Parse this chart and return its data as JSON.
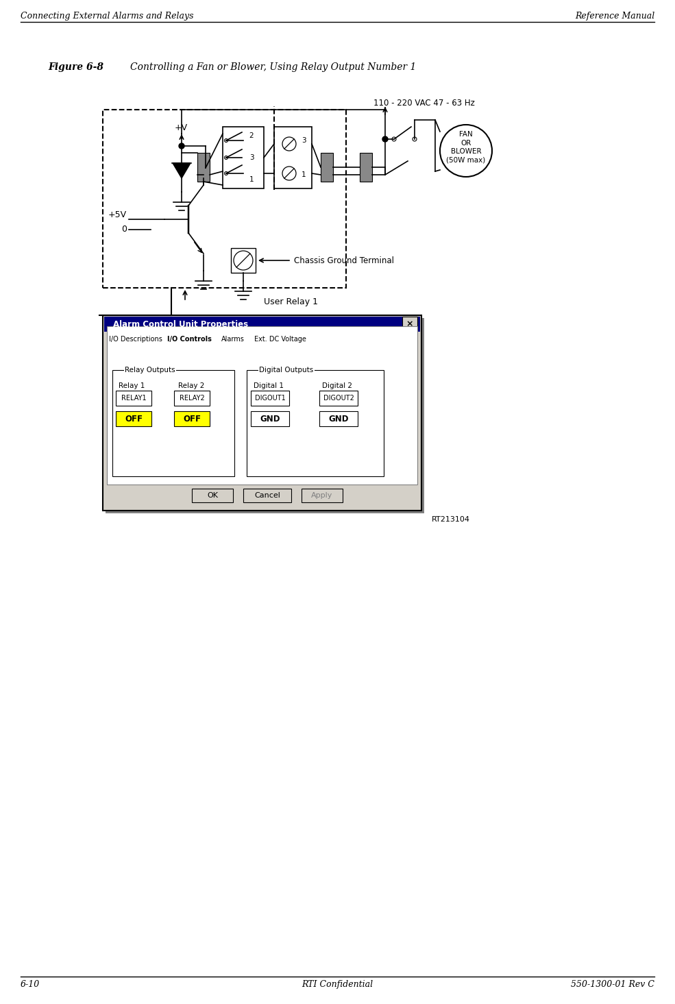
{
  "page_width": 9.85,
  "page_height": 14.65,
  "bg_color": "#ffffff",
  "header_left": "Connecting External Alarms and Relays",
  "header_right": "Reference Manual",
  "footer_left": "6-10",
  "footer_center": "RTI Confidential",
  "footer_right": "550-1300-01 Rev C",
  "figure_title": "Figure 6-8",
  "figure_caption": "Controlling a Fan or Blower, Using Relay Output Number 1",
  "circuit_label_dashed": "User Relay 1",
  "chassis_ground_label": "Chassis Ground Terminal",
  "voltage_label": "110 - 220 VAC 47 - 63 Hz",
  "fan_label": "FAN\nOR\nBLOWER\n(50W max)",
  "plus_v_label": "+V",
  "plus_5v_label": "+5V",
  "zero_label": "0",
  "ref_label": "RT213104",
  "dialog_title": "Alarm Control Unit Properties",
  "tab_labels": [
    "I/O Descriptions",
    "I/O Controls",
    "Alarms",
    "Ext. DC Voltage"
  ],
  "active_tab": "I/O Controls",
  "relay_outputs_label": "Relay Outputs",
  "digital_outputs_label": "Digital Outputs",
  "relay1_label": "Relay 1",
  "relay2_label": "Relay 2",
  "digital1_label": "Digital 1",
  "digital2_label": "Digital 2",
  "relay1_btn": "RELAY1",
  "relay2_btn": "RELAY2",
  "digout1_btn": "DIGOUT1",
  "digout2_btn": "DIGOUT2",
  "off1_btn": "OFF",
  "off2_btn": "OFF",
  "gnd1_btn": "GND",
  "gnd2_btn": "GND",
  "ok_btn": "OK",
  "cancel_btn": "Cancel",
  "apply_btn": "Apply",
  "dialog_bg": "#d4d0c8",
  "dialog_title_bg": "#000080",
  "dialog_title_color": "#ffffff",
  "btn_bg": "#d4d0c8",
  "relay_btn_bg": "#ffffff",
  "off_btn_bg": "#ffff00",
  "gnd_btn_bg": "#ffffff",
  "active_tab_bg": "#ffffff",
  "inactive_tab_bg": "#d4d0c8"
}
